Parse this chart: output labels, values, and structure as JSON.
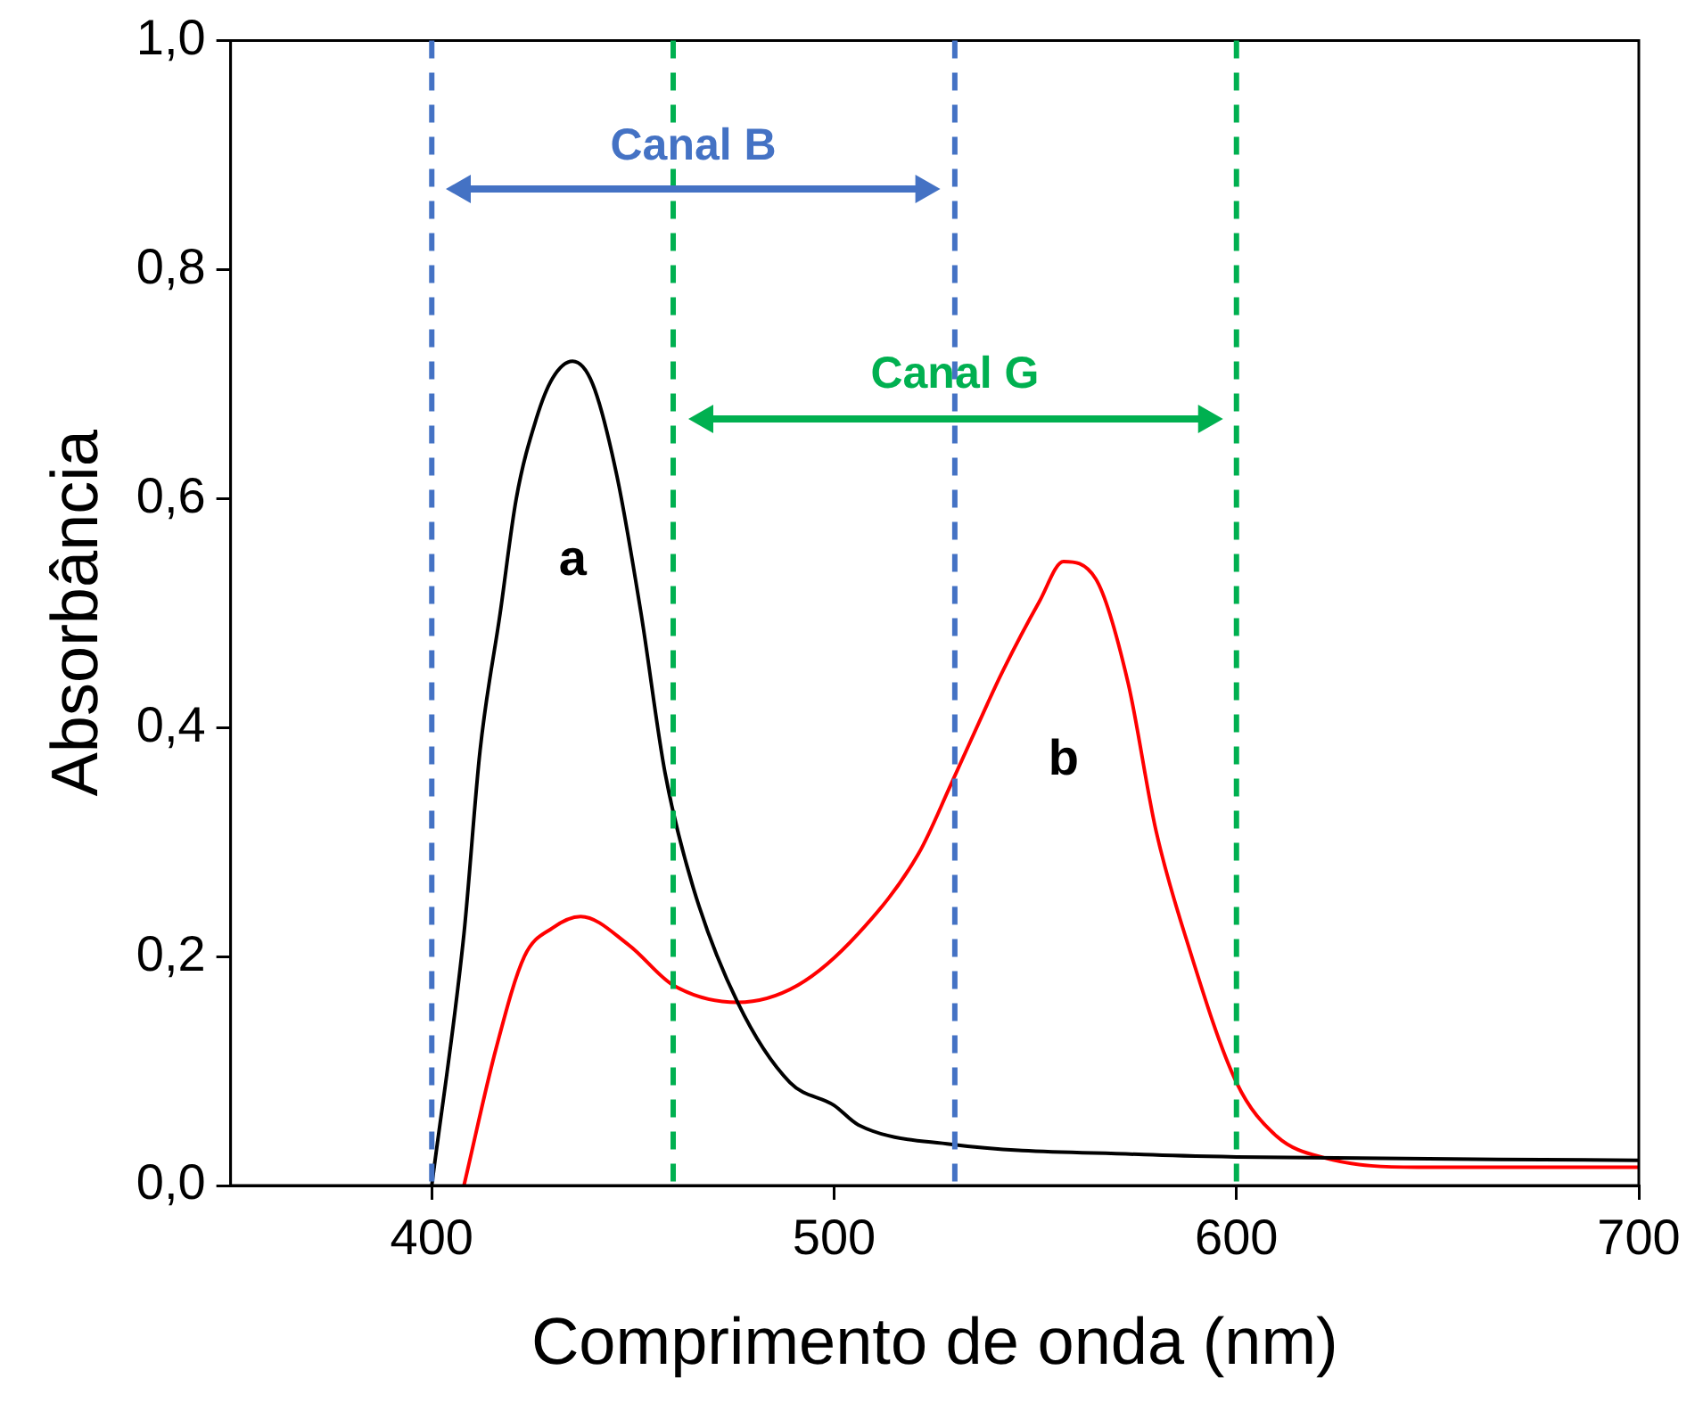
{
  "chart_data": {
    "type": "line",
    "xlabel": "Comprimento de onda (nm)",
    "ylabel": "Absorbância",
    "xlim": [
      350,
      700
    ],
    "xticks": [
      400,
      500,
      600,
      700
    ],
    "ylim": [
      0,
      1
    ],
    "yticks": [
      {
        "value": 0,
        "label": "0,0"
      },
      {
        "value": 0.2,
        "label": "0,2"
      },
      {
        "value": 0.4,
        "label": "0,4"
      },
      {
        "value": 0.6,
        "label": "0,6"
      },
      {
        "value": 0.8,
        "label": "0,8"
      },
      {
        "value": 1,
        "label": "1,0"
      }
    ],
    "grid": false,
    "legend": false,
    "marker": "none",
    "line_style": "solid",
    "series": [
      {
        "color": "#000000",
        "x": [
          400,
          408,
          412,
          417,
          421,
          426,
          430,
          435,
          440,
          446,
          452,
          458,
          465,
          476,
          489,
          500,
          506,
          529,
          577,
          600,
          700
        ],
        "values": [
          0,
          0.22,
          0.38,
          0.5,
          0.6,
          0.67,
          0.705,
          0.72,
          0.7,
          0.62,
          0.5,
          0.36,
          0.26,
          0.16,
          0.09,
          0.07,
          0.053,
          0.036,
          0.027,
          0.025,
          0.022
        ]
      },
      {
        "color": "#ff0000",
        "x": [
          408,
          416,
          423,
          430,
          437,
          449,
          460,
          476,
          491,
          506,
          521,
          529,
          538,
          542,
          551,
          557,
          565,
          573,
          580,
          588,
          600,
          610,
          622,
          645,
          700
        ],
        "values": [
          0,
          0.12,
          0.2,
          0.225,
          0.235,
          0.21,
          0.175,
          0.16,
          0.175,
          0.22,
          0.29,
          0.35,
          0.42,
          0.45,
          0.51,
          0.545,
          0.53,
          0.44,
          0.31,
          0.21,
          0.09,
          0.043,
          0.024,
          0.016,
          0.016
        ]
      }
    ],
    "ref_lines": [
      {
        "axis": "x",
        "value": 400,
        "color": "#4472c4",
        "line_style": "dashed",
        "label": "Canal B"
      },
      {
        "axis": "x",
        "value": 530,
        "color": "#4472c4",
        "line_style": "dashed"
      },
      {
        "axis": "x",
        "value": 460,
        "color": "#00b050",
        "line_style": "dashed",
        "label": "Canal G"
      },
      {
        "axis": "x",
        "value": 600,
        "color": "#00b050",
        "line_style": "dashed"
      }
    ],
    "annotations": [
      "a",
      "b"
    ]
  }
}
